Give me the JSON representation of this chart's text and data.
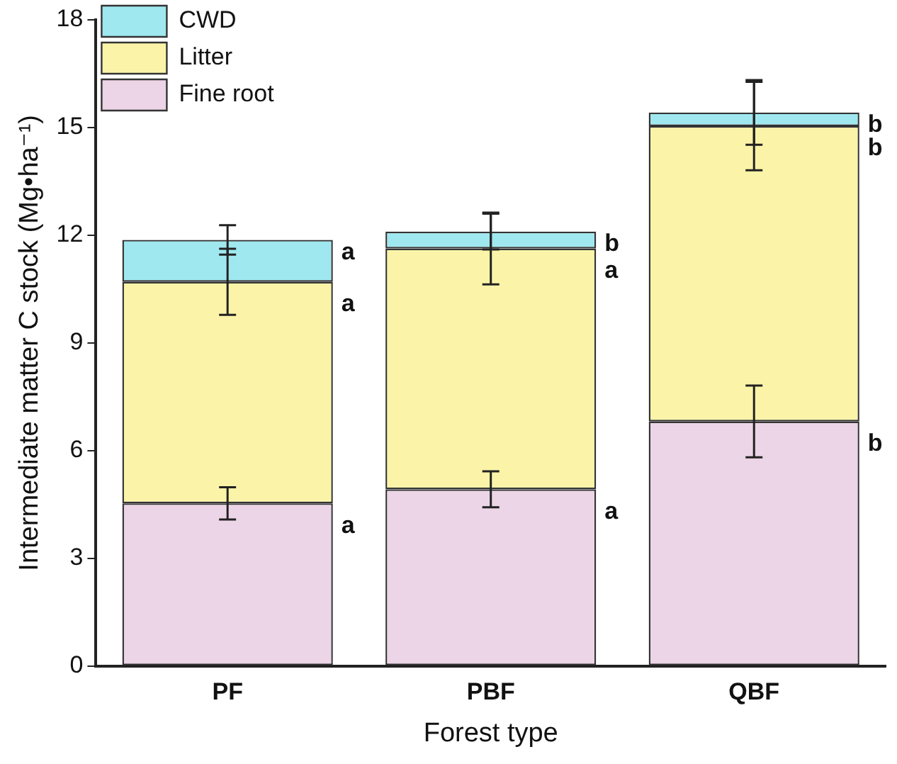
{
  "chart_data": {
    "type": "bar",
    "stacked": true,
    "xlabel": "Forest type",
    "ylabel": "Intermediate matter C stock (Mg•ha⁻¹)",
    "categories": [
      "PF",
      "PBF",
      "QBF"
    ],
    "series": [
      {
        "name": "Fine root",
        "color": "#ecd5e6",
        "values": [
          4.53,
          4.92,
          6.81
        ],
        "errors": [
          0.45,
          0.5,
          1.0
        ]
      },
      {
        "name": "Litter",
        "color": "#fbf4a8",
        "values": [
          6.17,
          6.71,
          8.23
        ],
        "errors": [
          0.92,
          1.0,
          1.23
        ]
      },
      {
        "name": "CWD",
        "color": "#a0e8ef",
        "values": [
          1.17,
          0.47,
          0.38
        ],
        "errors": [
          0.41,
          0.5,
          0.9
        ]
      }
    ],
    "ylim": [
      0,
      18
    ],
    "yticks": [
      0,
      3,
      6,
      9,
      12,
      15,
      18
    ],
    "grid": false,
    "legend": "top left",
    "annotations": [
      "a",
      "a",
      "a",
      "a",
      "a",
      "b",
      "b",
      "b",
      "b"
    ]
  }
}
